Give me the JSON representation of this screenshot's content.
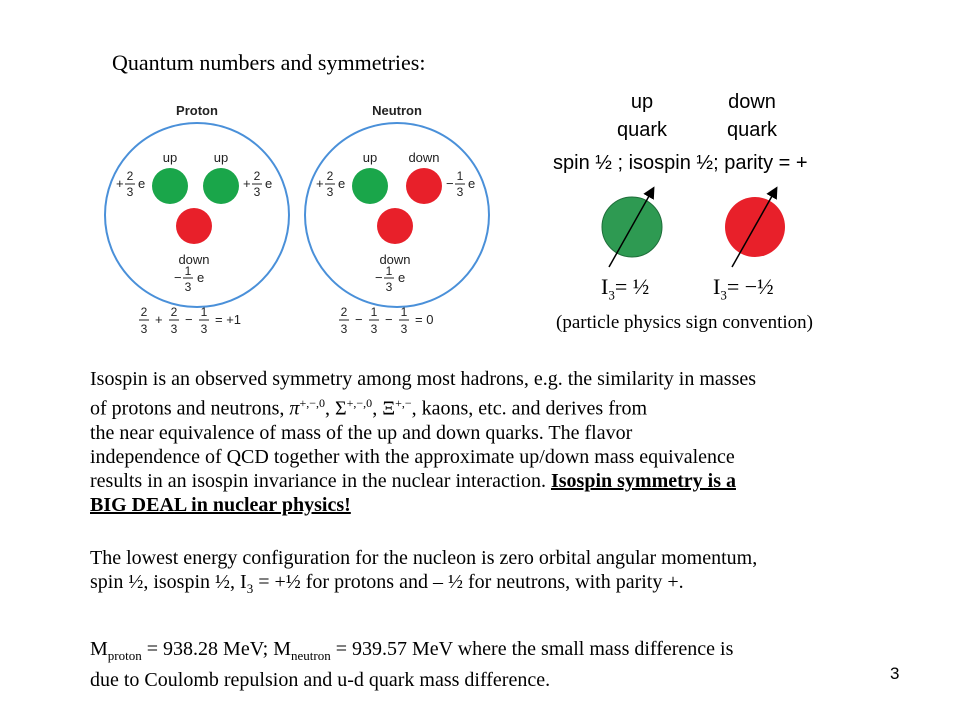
{
  "heading": "Quantum numbers and symmetries:",
  "nucleons": {
    "proton": {
      "title": "Proton",
      "left_label": "up",
      "right_label": "up",
      "bottom_label": "down",
      "left_charge_num": "2",
      "right_charge_num": "2",
      "bottom_charge_num": "1",
      "sum_a": "2",
      "sum_b": "2",
      "sum_c": "1",
      "sum_op1": "+",
      "sum_op2": "−",
      "sum_result": "= +1"
    },
    "neutron": {
      "title": "Neutron",
      "left_label": "up",
      "right_label": "down",
      "bottom_label": "down",
      "left_charge_num": "2",
      "right_charge_num": "1",
      "bottom_charge_num": "1",
      "sum_a": "2",
      "sum_b": "1",
      "sum_c": "1",
      "sum_op1": "−",
      "sum_op2": "−",
      "sum_result": "= 0"
    },
    "denominator": "3",
    "charge_unit": "e",
    "plus": "+",
    "minus": "−"
  },
  "quarks": {
    "up_line1": "up",
    "up_line2": "quark",
    "down_line1": "down",
    "down_line2": "quark",
    "spin_line": "spin ½ ; isospin ½; parity = +",
    "i3_symbol": "I",
    "i3_sub": "3",
    "up_i3_value": "= ½",
    "down_i3_value": "= −½",
    "convention": "(particle physics sign convention)"
  },
  "colors": {
    "up": "#1aa64a",
    "up_alt": "#2e9a52",
    "down": "#e8202a",
    "circle_border": "#4a90d9"
  },
  "para1": {
    "line1": "Isospin is an observed symmetry among most hadrons, e.g. the similarity in masses",
    "line2_pre": "of protons and neutrons, ",
    "pi": "π",
    "pi_sup": "+,−,0",
    "sigma": "Σ",
    "sigma_sup": "+,−,0",
    "xi": "Ξ",
    "xi_sup": "+,−",
    "line2_post": " kaons, etc.  and derives from",
    "line3": "the near equivalence of mass of the up and down quarks.  The flavor",
    "line4": "independence of QCD together with the approximate up/down mass equivalence",
    "line5_pre": "results in an isospin invariance in the nuclear interaction. ",
    "line5_bold": "Isospin symmetry is a ",
    "line6_bold": "BIG DEAL in nuclear physics!"
  },
  "para2": {
    "line1": "The lowest energy configuration for the nucleon is zero orbital angular momentum,",
    "line2_pre": "spin ½, isospin ½, I",
    "line2_sub": "3",
    "line2_post": " = +½ for protons and – ½ for neutrons, with parity +."
  },
  "para3": {
    "m1": "M",
    "m1_sub": "proton",
    "m1_val": " = 938.28 MeV; M",
    "m2_sub": "neutron",
    "m2_val": " = 939.57 MeV where the small mass difference is",
    "line2": "due to Coulomb repulsion and u-d quark mass difference."
  },
  "page_number": "3"
}
